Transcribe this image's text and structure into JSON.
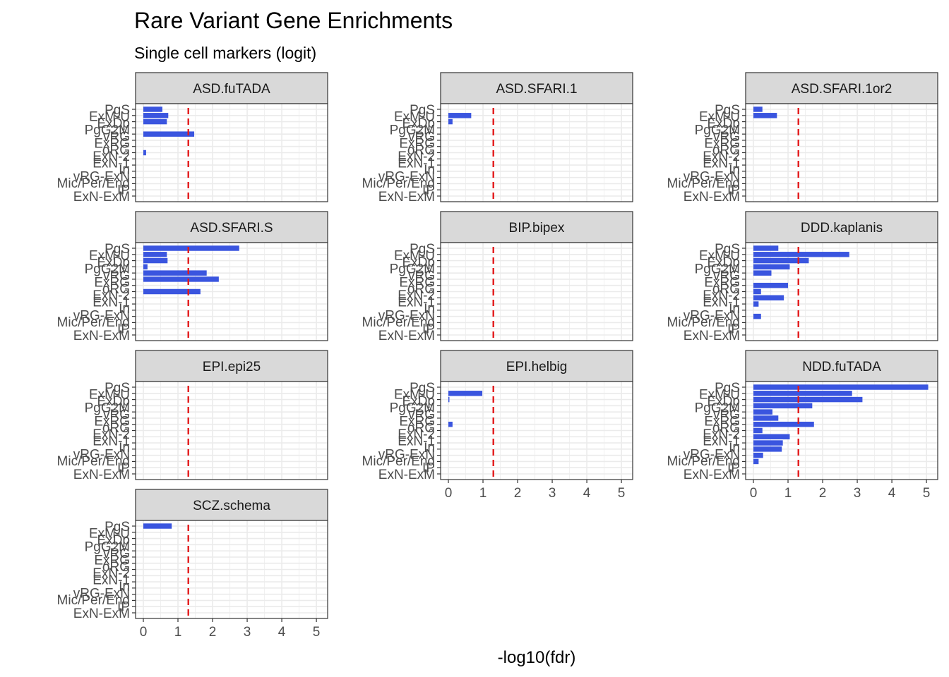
{
  "chart_data": {
    "type": "bar",
    "orientation": "horizontal",
    "title": "Rare Variant Gene Enrichments",
    "subtitle": "Single cell markers (logit)",
    "xlabel": "-log10(fdr)",
    "xlim": [
      0,
      5.1
    ],
    "xticks": [
      0,
      1,
      2,
      3,
      4,
      5
    ],
    "threshold": 1.3,
    "categories": [
      "PgS",
      "ExM-U",
      "ExM",
      "ExDp",
      "PgG2M",
      "vRG",
      "ExRG",
      "oRG",
      "ExN-2",
      "ExN-1",
      "In",
      "vRG-ExN",
      "Mic/Per/End",
      "IP",
      "ExN-ExM"
    ],
    "ytick_labels": [
      "PgS",
      "ExM-U",
      "ExDp",
      "PgG2M",
      "vRG",
      "ExRG",
      "oRG",
      "ExN-2",
      "ExN-1",
      "In",
      "vRG-ExN",
      "Mic/Per/End",
      "IP",
      "ExN-ExM"
    ],
    "bar_color": "#3a55df",
    "threshold_color": "#e31a1c",
    "grid": true,
    "panels": [
      {
        "name": "ASD.fuTADA",
        "values": [
          0.55,
          0.72,
          0.68,
          0,
          1.47,
          0,
          0,
          0.08,
          0,
          0,
          0,
          0,
          0,
          0,
          0
        ]
      },
      {
        "name": "ASD.SFARI.1",
        "values": [
          0,
          0.66,
          0.12,
          0,
          0,
          0,
          0,
          0,
          0,
          0,
          0,
          0,
          0,
          0,
          0
        ]
      },
      {
        "name": "ASD.SFARI.1or2",
        "values": [
          0.26,
          0.68,
          0,
          0,
          0,
          0,
          0,
          0,
          0,
          0,
          0,
          0,
          0,
          0,
          0
        ]
      },
      {
        "name": "ASD.SFARI.S",
        "values": [
          2.77,
          0.68,
          0.7,
          0.12,
          1.83,
          2.18,
          0,
          1.65,
          0,
          0,
          0,
          0,
          0,
          0,
          0
        ]
      },
      {
        "name": "BIP.bipex",
        "values": [
          0,
          0,
          0,
          0,
          0,
          0,
          0,
          0,
          0,
          0,
          0,
          0,
          0,
          0,
          0
        ]
      },
      {
        "name": "DDD.kaplanis",
        "values": [
          0.72,
          2.77,
          1.6,
          1.05,
          0.52,
          0,
          1.0,
          0.22,
          0.88,
          0.15,
          0,
          0.22,
          0,
          0,
          0
        ]
      },
      {
        "name": "EPI.epi25",
        "values": [
          0,
          0,
          0,
          0,
          0,
          0,
          0,
          0,
          0,
          0,
          0,
          0,
          0,
          0,
          0
        ]
      },
      {
        "name": "EPI.helbig",
        "values": [
          0,
          0.98,
          0.03,
          0,
          0,
          0,
          0.12,
          0,
          0,
          0,
          0,
          0,
          0,
          0,
          0
        ]
      },
      {
        "name": "NDD.fuTADA",
        "values": [
          5.05,
          2.85,
          3.15,
          1.7,
          0.55,
          0.72,
          1.75,
          0.26,
          1.05,
          0.85,
          0.82,
          0.28,
          0.15,
          0,
          0
        ]
      },
      {
        "name": "SCZ.schema",
        "values": [
          0.82,
          0,
          0,
          0,
          0,
          0,
          0,
          0,
          0,
          0,
          0,
          0,
          0,
          0,
          0
        ]
      }
    ]
  }
}
